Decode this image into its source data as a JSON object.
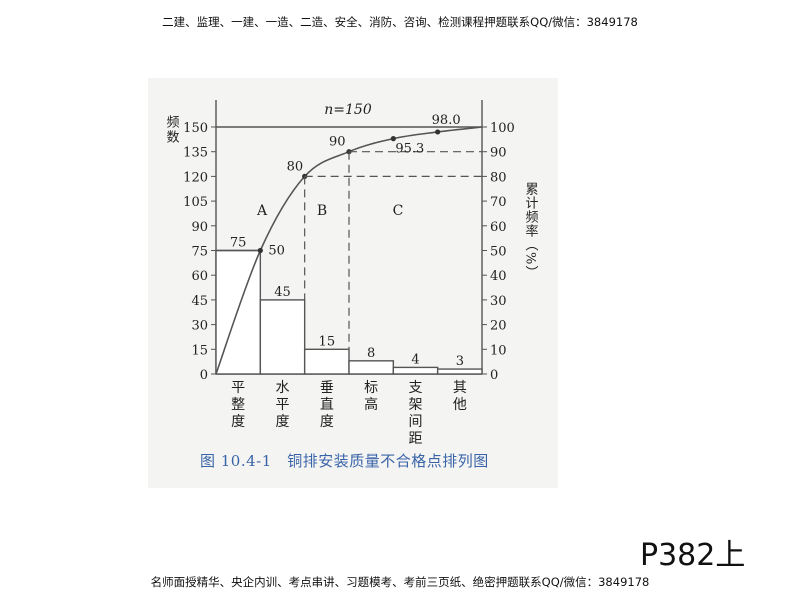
{
  "header_note": "二建、监理、一建、一造、二造、安全、消防、咨询、检测课程押题联系QQ/微信：3849178",
  "footer_note": "名师面授精华、央企内训、考点串讲、习题模考、考前三页纸、绝密押题联系QQ/微信：3849178",
  "page_ref": "P382上",
  "caption": "图 10.4-1　铜排安装质量不合格点排列图",
  "chart_data": {
    "type": "bar",
    "subtype": "pareto",
    "categories": [
      "平整度",
      "水平度",
      "垂直度",
      "标高",
      "支架间距",
      "其他"
    ],
    "values": [
      75,
      45,
      15,
      8,
      4,
      3
    ],
    "cumulative_percent": [
      50,
      80,
      90,
      95.3,
      98.0,
      100
    ],
    "cumulative_labels": [
      "50",
      "80",
      "90",
      "95.3",
      "98.0"
    ],
    "total_label": "n=150",
    "ylabel": "频数",
    "y2label": "累计频率（%）",
    "ylim": [
      0,
      150
    ],
    "y2lim": [
      0,
      100
    ],
    "yticks": [
      0,
      15,
      30,
      45,
      60,
      75,
      90,
      105,
      120,
      135,
      150
    ],
    "y2ticks": [
      0,
      10,
      20,
      30,
      40,
      50,
      60,
      70,
      80,
      90,
      100
    ],
    "zones": [
      "A",
      "B",
      "C"
    ],
    "grid": false,
    "colors": {
      "line": "#555555",
      "bar_fill": "#ffffff",
      "text": "#222222"
    }
  }
}
